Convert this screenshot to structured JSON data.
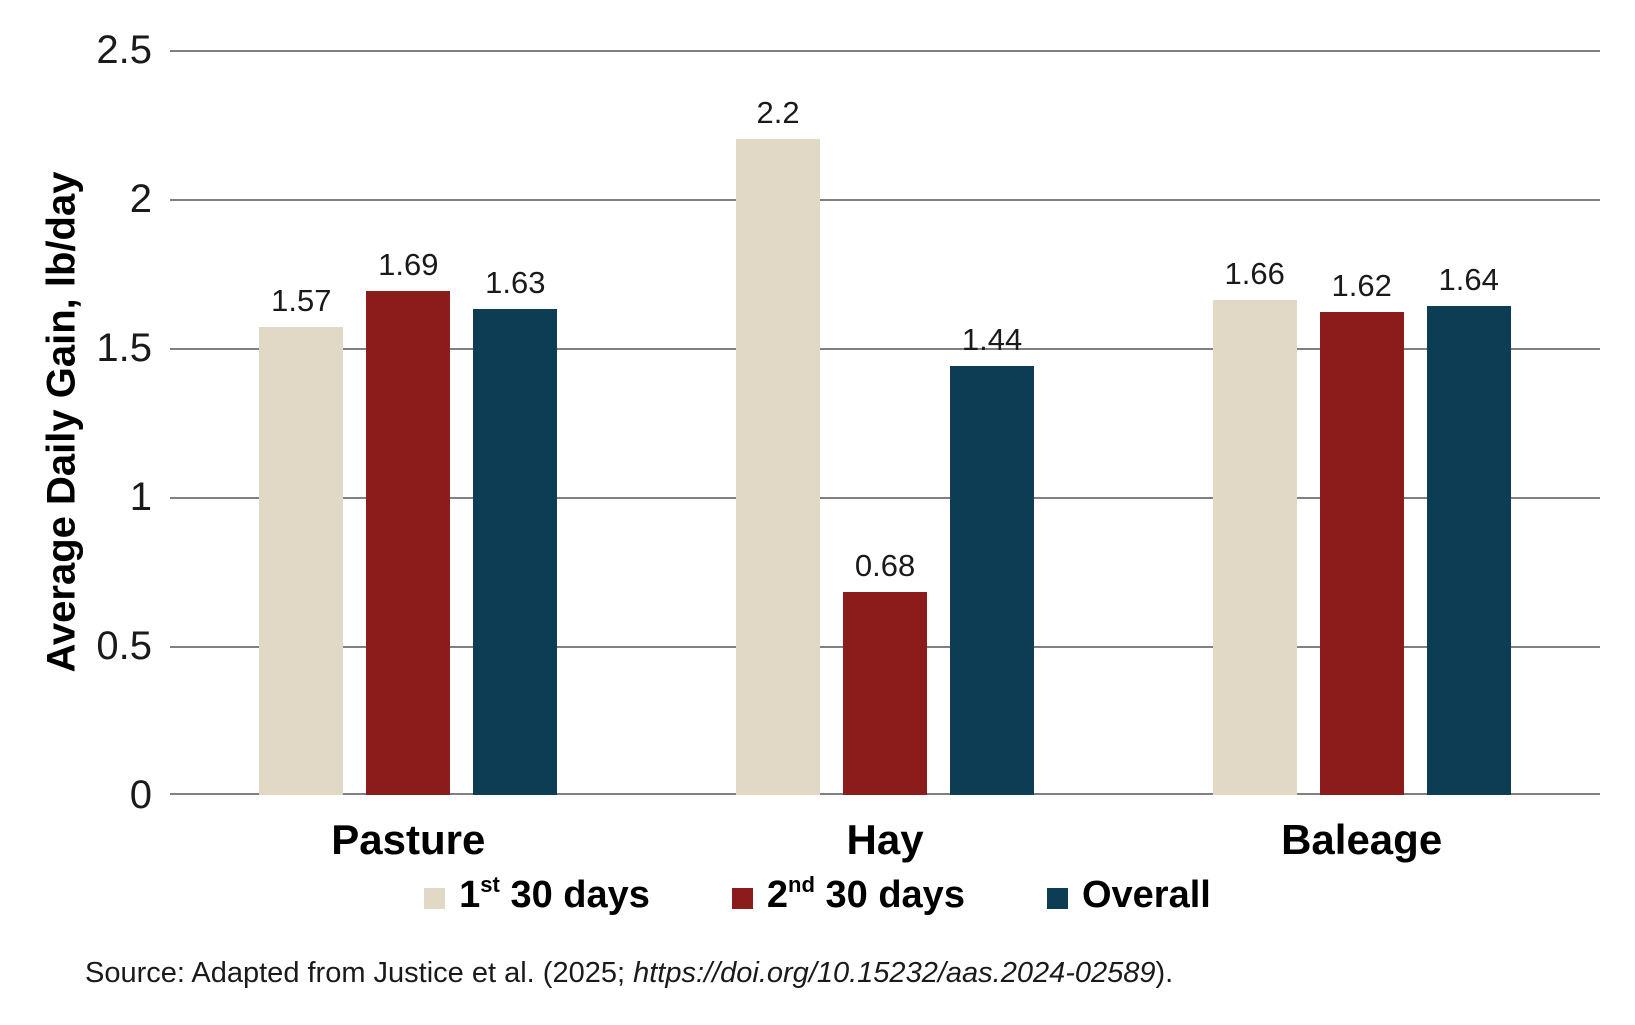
{
  "chart_data": {
    "type": "bar",
    "title": "",
    "ylabel": "Average Daily Gain, lb/day",
    "xlabel": "",
    "ylim": [
      0,
      2.5
    ],
    "ytick_values": [
      0,
      0.5,
      1,
      1.5,
      2,
      2.5
    ],
    "ytick_labels": [
      "0",
      "0.5",
      "1",
      "1.5",
      "2",
      "2.5"
    ],
    "grid": true,
    "legend_position": "bottom",
    "categories": [
      "Pasture",
      "Hay",
      "Baleage"
    ],
    "series": [
      {
        "name": "1st 30 days",
        "label_parts": {
          "base": "1",
          "sup": "st",
          "rest": " 30 days"
        },
        "color": "#E1D9C5",
        "values": [
          1.57,
          2.2,
          1.66
        ],
        "value_labels": [
          "1.57",
          "2.2",
          "1.66"
        ]
      },
      {
        "name": "2nd 30 days",
        "label_parts": {
          "base": "2",
          "sup": "nd",
          "rest": " 30 days"
        },
        "color": "#8C1B1B",
        "values": [
          1.69,
          0.68,
          1.62
        ],
        "value_labels": [
          "1.69",
          "0.68",
          "1.62"
        ]
      },
      {
        "name": "Overall",
        "label_parts": {
          "base": "Overall",
          "sup": "",
          "rest": ""
        },
        "color": "#0D3C55",
        "values": [
          1.63,
          1.44,
          1.64
        ],
        "value_labels": [
          "1.63",
          "1.44",
          "1.64"
        ]
      }
    ],
    "colors": {
      "gridline": "#808080",
      "text": "#1A1A1A"
    }
  },
  "source": {
    "prefix": "Source: Adapted from Justice et al. (2025; ",
    "link": "https://doi.org/10.15232/aas.2024-02589",
    "suffix": ")."
  }
}
